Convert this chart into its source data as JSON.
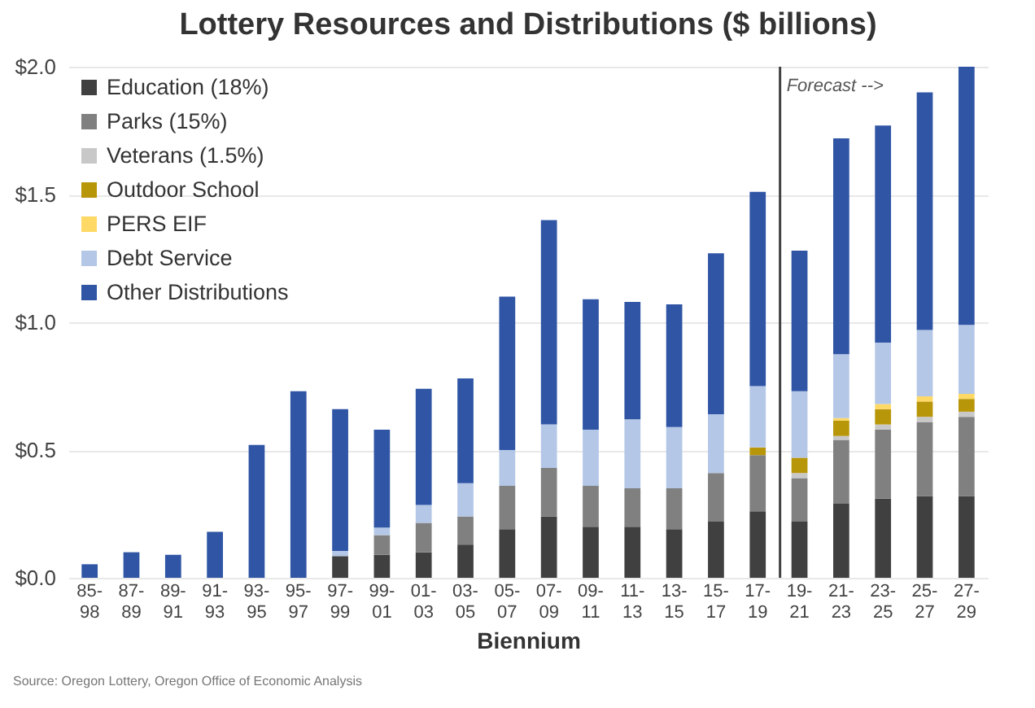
{
  "chart_data": {
    "type": "bar",
    "title": "Lottery Resources and Distributions ($ billions)",
    "xlabel": "Biennium",
    "stacked": true,
    "grid": "y",
    "legend": "top left",
    "categories": [
      "85-98",
      "87-89",
      "89-91",
      "91-93",
      "93-95",
      "95-97",
      "97-99",
      "99-01",
      "01-03",
      "03-05",
      "05-07",
      "07-09",
      "09-11",
      "11-13",
      "13-15",
      "15-17",
      "17-19",
      "19-21",
      "21-23",
      "23-25",
      "25-27",
      "27-29"
    ],
    "ylim": [
      0,
      2
    ],
    "yticks": [
      {
        "value": 0,
        "label": "$0.0"
      },
      {
        "value": 0.5,
        "label": "$0.5"
      },
      {
        "value": 1,
        "label": "$1.0"
      },
      {
        "value": 1.5,
        "label": "$1.5"
      },
      {
        "value": 2,
        "label": "$2.0"
      }
    ],
    "series": [
      {
        "name": "Education (18%)",
        "color": "#404040",
        "values": [
          0,
          0,
          0,
          0,
          0,
          0,
          0.085,
          0.09,
          0.1,
          0.13,
          0.19,
          0.24,
          0.2,
          0.2,
          0.19,
          0.22,
          0.26,
          0.22,
          0.29,
          0.31,
          0.32,
          0.32
        ]
      },
      {
        "name": "Parks (15%)",
        "color": "#808080",
        "values": [
          0,
          0,
          0,
          0,
          0,
          0,
          0,
          0.077,
          0.115,
          0.11,
          0.17,
          0.19,
          0.16,
          0.15,
          0.16,
          0.19,
          0.22,
          0.17,
          0.25,
          0.27,
          0.29,
          0.31
        ]
      },
      {
        "name": "Veterans (1.5%)",
        "color": "#c8c8c8",
        "values": [
          0,
          0,
          0,
          0,
          0,
          0,
          0,
          0,
          0,
          0,
          0,
          0,
          0,
          0,
          0,
          0,
          null,
          0.02,
          0.015,
          0.02,
          0.02,
          0.02
        ]
      },
      {
        "name": "Outdoor School",
        "color": "#b8960a",
        "values": [
          0,
          0,
          0,
          0,
          0,
          0,
          0,
          0,
          0,
          0,
          0,
          0,
          0,
          0,
          0,
          0,
          0.03,
          0.06,
          0.06,
          0.06,
          0.06,
          0.05
        ]
      },
      {
        "name": "PERS EIF",
        "color": "#ffd966",
        "values": [
          0,
          0,
          0,
          0,
          0,
          0,
          0,
          0,
          0,
          0,
          0,
          0,
          0,
          0,
          0,
          0,
          0,
          0,
          0.01,
          0.02,
          0.02,
          0.02
        ]
      },
      {
        "name": "Debt Service",
        "color": "#b4c7e7",
        "values": [
          0,
          0,
          0,
          0,
          0,
          0,
          0.02,
          0.03,
          0.07,
          0.13,
          0.14,
          0.17,
          0.22,
          0.27,
          0.24,
          0.23,
          0.24,
          0.26,
          0.25,
          0.24,
          0.26,
          0.27
        ]
      },
      {
        "name": "Other Distributions",
        "color": "#2f55a4",
        "values": [
          0.053,
          0.1,
          0.09,
          0.18,
          0.52,
          0.73,
          0.555,
          0.383,
          0.455,
          0.41,
          0.6,
          0.8,
          0.51,
          0.46,
          0.48,
          0.63,
          0.76,
          0.55,
          0.845,
          0.85,
          0.93,
          1.01
        ]
      }
    ],
    "ref_lines": [
      {
        "axis": "x",
        "value": "19-21",
        "label": "Forecast -->",
        "color": "#404040"
      }
    ],
    "annotations": [
      "Source: Oregon Lottery, Oregon Office of Economic Analysis"
    ]
  }
}
